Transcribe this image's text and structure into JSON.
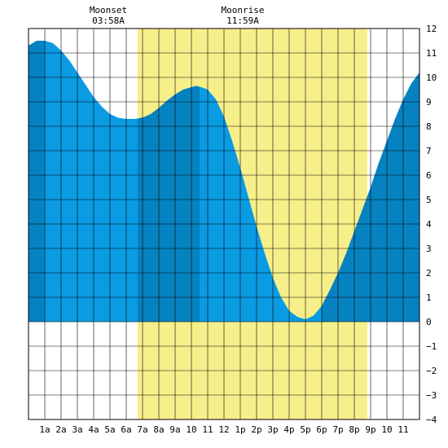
{
  "chart_data": {
    "type": "area",
    "title": "",
    "xlabel": "",
    "ylabel": "",
    "xlim": [
      0,
      24
    ],
    "ylim": [
      -4,
      12
    ],
    "y_ticks": [
      12,
      11,
      10,
      9,
      8,
      7,
      6,
      5,
      4,
      3,
      2,
      1,
      0,
      -1,
      -2,
      -3,
      -4
    ],
    "y_tick_labels": [
      "12",
      "11",
      "10",
      "9",
      "8",
      "7",
      "6",
      "5",
      "4",
      "3",
      "2",
      "1",
      "0",
      "−1",
      "−2",
      "−3",
      "−4"
    ],
    "x_ticks": [
      1,
      2,
      3,
      4,
      5,
      6,
      7,
      8,
      9,
      10,
      11,
      12,
      13,
      14,
      15,
      16,
      17,
      18,
      19,
      20,
      21,
      22,
      23
    ],
    "x_tick_labels": [
      "1a",
      "2a",
      "3a",
      "4a",
      "5a",
      "6a",
      "7a",
      "8a",
      "9a",
      "10",
      "11",
      "12",
      "1p",
      "2p",
      "3p",
      "4p",
      "5p",
      "6p",
      "7p",
      "8p",
      "9p",
      "10",
      "11"
    ],
    "grid": true,
    "series": [
      {
        "x": [
          0.0,
          0.5,
          1.0,
          1.5,
          2.0,
          2.5,
          3.0,
          3.5,
          4.0,
          4.5,
          5.0,
          5.5,
          6.0,
          6.5,
          7.0,
          7.5,
          8.0,
          8.5,
          9.0,
          9.5,
          10.0,
          10.3,
          10.6,
          11.0,
          11.5,
          12.0,
          12.5,
          13.0,
          13.5,
          14.0,
          14.5,
          15.0,
          15.5,
          16.0,
          16.5,
          17.0,
          17.5,
          18.0,
          18.5,
          19.0,
          19.5,
          20.0,
          20.5,
          21.0,
          21.5,
          22.0,
          22.5,
          23.0,
          23.5,
          24.0
        ],
        "y": [
          11.3,
          11.5,
          11.5,
          11.4,
          11.1,
          10.7,
          10.2,
          9.7,
          9.2,
          8.8,
          8.5,
          8.35,
          8.3,
          8.3,
          8.35,
          8.5,
          8.75,
          9.05,
          9.3,
          9.5,
          9.6,
          9.65,
          9.6,
          9.5,
          9.1,
          8.4,
          7.4,
          6.3,
          5.1,
          3.9,
          2.8,
          1.8,
          1.0,
          0.45,
          0.2,
          0.1,
          0.25,
          0.65,
          1.3,
          2.0,
          2.8,
          3.7,
          4.6,
          5.5,
          6.5,
          7.4,
          8.3,
          9.1,
          9.75,
          10.2
        ]
      }
    ],
    "shading": {
      "daylight_band": [
        6.7,
        20.8
      ],
      "dark_blue_ranges": [
        [
          0,
          0.95
        ],
        [
          6.7,
          10.5
        ],
        [
          18.0,
          24
        ]
      ]
    },
    "annotations": {
      "moonset_label": "Moonset",
      "moonset_time": "03:58A",
      "moonset_x": 3.97,
      "moonrise_label": "Moonrise",
      "moonrise_time": "11:59A",
      "moonrise_x": 11.98
    },
    "colors": {
      "water_light": "#0a9be3",
      "water_dark": "#0782c0",
      "daylight": "#f7ef8a",
      "grid": "#000000",
      "background": "#ffffff"
    }
  }
}
